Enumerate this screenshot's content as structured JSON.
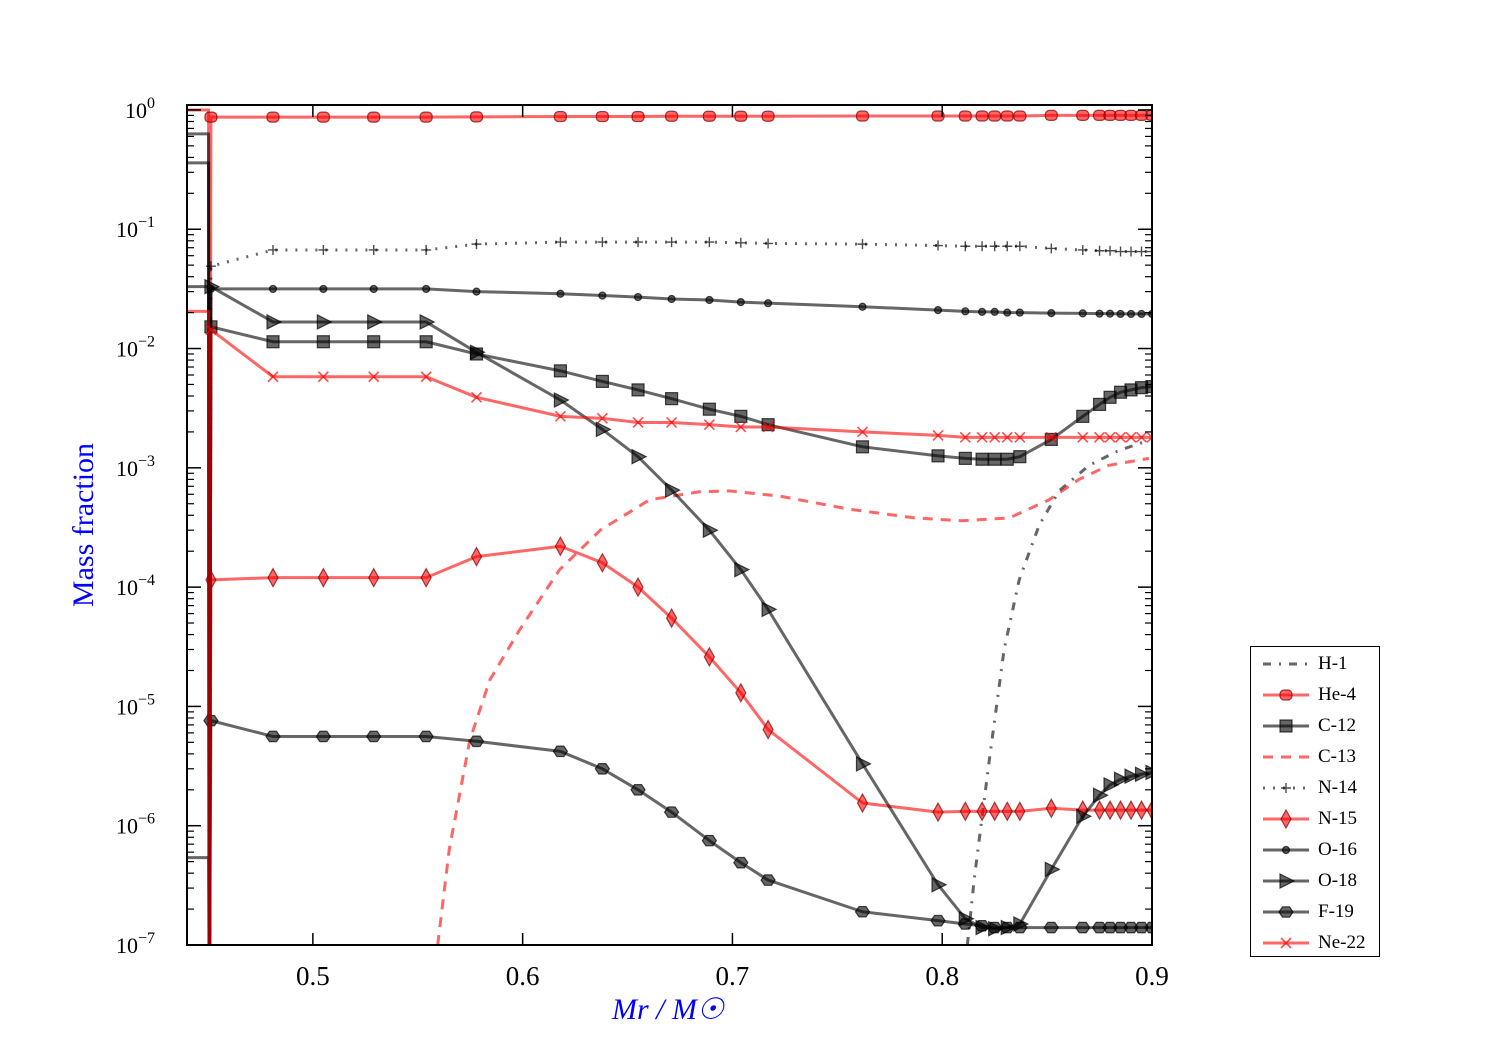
{
  "chart_data": {
    "type": "line",
    "title": "",
    "xlabel": "Mr / M☉",
    "ylabel": "Mass fraction",
    "xlim": [
      0.44,
      0.9
    ],
    "ylim": [
      1e-07,
      1.1
    ],
    "yscale": "log",
    "xticks": [
      "0.5",
      "0.6",
      "0.7",
      "0.8",
      "0.9"
    ],
    "xtick_values": [
      0.5,
      0.6,
      0.7,
      0.8,
      0.9
    ],
    "ytick_base": "10",
    "ytick_exponents": [
      "0",
      "−1",
      "−2",
      "−3",
      "−4",
      "−5",
      "−6",
      "−7"
    ],
    "legend_position": "outside-bottom-right",
    "marker_x": [
      0.4514,
      0.481,
      0.505,
      0.529,
      0.554,
      0.578,
      0.618,
      0.638,
      0.655,
      0.671,
      0.689,
      0.704,
      0.717,
      0.762,
      0.798,
      0.811,
      0.819,
      0.825,
      0.831,
      0.837,
      0.852,
      0.867,
      0.875,
      0.88,
      0.885,
      0.89,
      0.895,
      0.9
    ],
    "series": [
      {
        "name": "H-1",
        "color": "#000000",
        "dash": "dashdot",
        "marker": "none",
        "x": [
          0.812,
          0.8152,
          0.8224,
          0.8295,
          0.8367,
          0.8462,
          0.8557,
          0.87,
          0.8843,
          0.8986
        ],
        "y": [
          1e-07,
          3.5e-07,
          3.5e-06,
          3e-05,
          0.000115,
          0.00033,
          0.00064,
          0.00105,
          0.0014,
          0.0017
        ]
      },
      {
        "name": "He-4",
        "color": "#ff0000",
        "dash": "solid",
        "marker": "circle",
        "left": 1.0,
        "y": [
          0.87,
          0.87,
          0.87,
          0.87,
          0.87,
          0.875,
          0.88,
          0.88,
          0.88,
          0.885,
          0.885,
          0.885,
          0.885,
          0.89,
          0.89,
          0.89,
          0.89,
          0.89,
          0.89,
          0.89,
          0.9,
          0.9,
          0.9,
          0.9,
          0.9,
          0.9,
          0.9,
          0.9
        ]
      },
      {
        "name": "C-12",
        "color": "#000000",
        "dash": "solid",
        "marker": "square",
        "left": 0.36,
        "y": [
          0.0152,
          0.0114,
          0.0114,
          0.0114,
          0.0114,
          0.009,
          0.0065,
          0.0053,
          0.0045,
          0.0038,
          0.0031,
          0.0027,
          0.0023,
          0.0015,
          0.00126,
          0.0012,
          0.00118,
          0.00118,
          0.00118,
          0.00124,
          0.00173,
          0.0027,
          0.0034,
          0.0039,
          0.0043,
          0.0045,
          0.0047,
          0.0048
        ]
      },
      {
        "name": "C-13",
        "color": "#ff0000",
        "dash": "dashed",
        "marker": "none",
        "x": [
          0.5595,
          0.565,
          0.5748,
          0.5843,
          0.5986,
          0.6176,
          0.637,
          0.6605,
          0.6843,
          0.6986,
          0.7224,
          0.7557,
          0.7871,
          0.8095,
          0.8319,
          0.851,
          0.8652,
          0.8795,
          0.8986
        ],
        "y": [
          1e-07,
          6.3e-07,
          5.2e-06,
          1.66e-05,
          4.4e-05,
          0.00014,
          0.0003,
          0.00054,
          0.00063,
          0.00064,
          0.00058,
          0.00045,
          0.00038,
          0.00036,
          0.00038,
          0.00054,
          0.0008,
          0.00105,
          0.0012
        ]
      },
      {
        "name": "N-14",
        "color": "#000000",
        "dash": "dotted",
        "marker": "plus",
        "y": [
          0.049,
          0.067,
          0.067,
          0.067,
          0.067,
          0.075,
          0.078,
          0.078,
          0.078,
          0.078,
          0.078,
          0.077,
          0.076,
          0.075,
          0.073,
          0.072,
          0.072,
          0.072,
          0.072,
          0.072,
          0.069,
          0.067,
          0.066,
          0.066,
          0.065,
          0.065,
          0.065,
          0.065
        ]
      },
      {
        "name": "N-15",
        "color": "#ff0000",
        "dash": "solid",
        "marker": "diamond",
        "y": [
          0.000115,
          0.00012,
          0.00012,
          0.00012,
          0.00012,
          0.00018,
          0.00022,
          0.00016,
          0.0001,
          5.5e-05,
          2.6e-05,
          1.3e-05,
          6.4e-06,
          1.55e-06,
          1.3e-06,
          1.32e-06,
          1.32e-06,
          1.32e-06,
          1.32e-06,
          1.32e-06,
          1.4e-06,
          1.35e-06,
          1.35e-06,
          1.35e-06,
          1.35e-06,
          1.35e-06,
          1.35e-06,
          1.35e-06
        ]
      },
      {
        "name": "O-16",
        "color": "#000000",
        "dash": "solid",
        "marker": "dot",
        "left": 0.63,
        "y": [
          0.0316,
          0.0316,
          0.0316,
          0.0316,
          0.0316,
          0.03,
          0.0288,
          0.0278,
          0.027,
          0.026,
          0.0255,
          0.0245,
          0.024,
          0.0224,
          0.021,
          0.0205,
          0.0203,
          0.0203,
          0.02,
          0.02,
          0.0198,
          0.0197,
          0.0196,
          0.0196,
          0.0195,
          0.0195,
          0.0195,
          0.0195
        ]
      },
      {
        "name": "O-18",
        "color": "#000000",
        "dash": "solid",
        "marker": "triangle",
        "left": 0.033,
        "y": [
          0.033,
          0.0167,
          0.0167,
          0.0167,
          0.0167,
          0.0093,
          0.0037,
          0.0021,
          0.00124,
          0.00065,
          0.0003,
          0.00014,
          6.5e-05,
          3.3e-06,
          3.2e-07,
          1.66e-07,
          1.4e-07,
          1.37e-07,
          1.4e-07,
          1.5e-07,
          4.3e-07,
          1.2e-06,
          1.8e-06,
          2.2e-06,
          2.45e-06,
          2.6e-06,
          2.7e-06,
          2.8e-06
        ]
      },
      {
        "name": "F-19",
        "color": "#000000",
        "dash": "solid",
        "marker": "hexagon",
        "left": 5.4e-07,
        "y": [
          7.6e-06,
          5.6e-06,
          5.6e-06,
          5.6e-06,
          5.6e-06,
          5.1e-06,
          4.2e-06,
          3e-06,
          2e-06,
          1.3e-06,
          7.5e-07,
          4.9e-07,
          3.5e-07,
          1.9e-07,
          1.6e-07,
          1.5e-07,
          1.45e-07,
          1.4e-07,
          1.4e-07,
          1.4e-07,
          1.4e-07,
          1.4e-07,
          1.4e-07,
          1.4e-07,
          1.4e-07,
          1.4e-07,
          1.4e-07,
          1.4e-07
        ]
      },
      {
        "name": "Ne-22",
        "color": "#ff0000",
        "dash": "solid",
        "marker": "x",
        "left": 0.0205,
        "y": [
          0.0144,
          0.0058,
          0.0058,
          0.0058,
          0.0058,
          0.0039,
          0.0027,
          0.0026,
          0.0024,
          0.0024,
          0.0023,
          0.0022,
          0.0022,
          0.002,
          0.00187,
          0.0018,
          0.0018,
          0.0018,
          0.0018,
          0.0018,
          0.0018,
          0.0018,
          0.0018,
          0.0018,
          0.0018,
          0.0018,
          0.0018,
          0.0018
        ]
      }
    ]
  }
}
